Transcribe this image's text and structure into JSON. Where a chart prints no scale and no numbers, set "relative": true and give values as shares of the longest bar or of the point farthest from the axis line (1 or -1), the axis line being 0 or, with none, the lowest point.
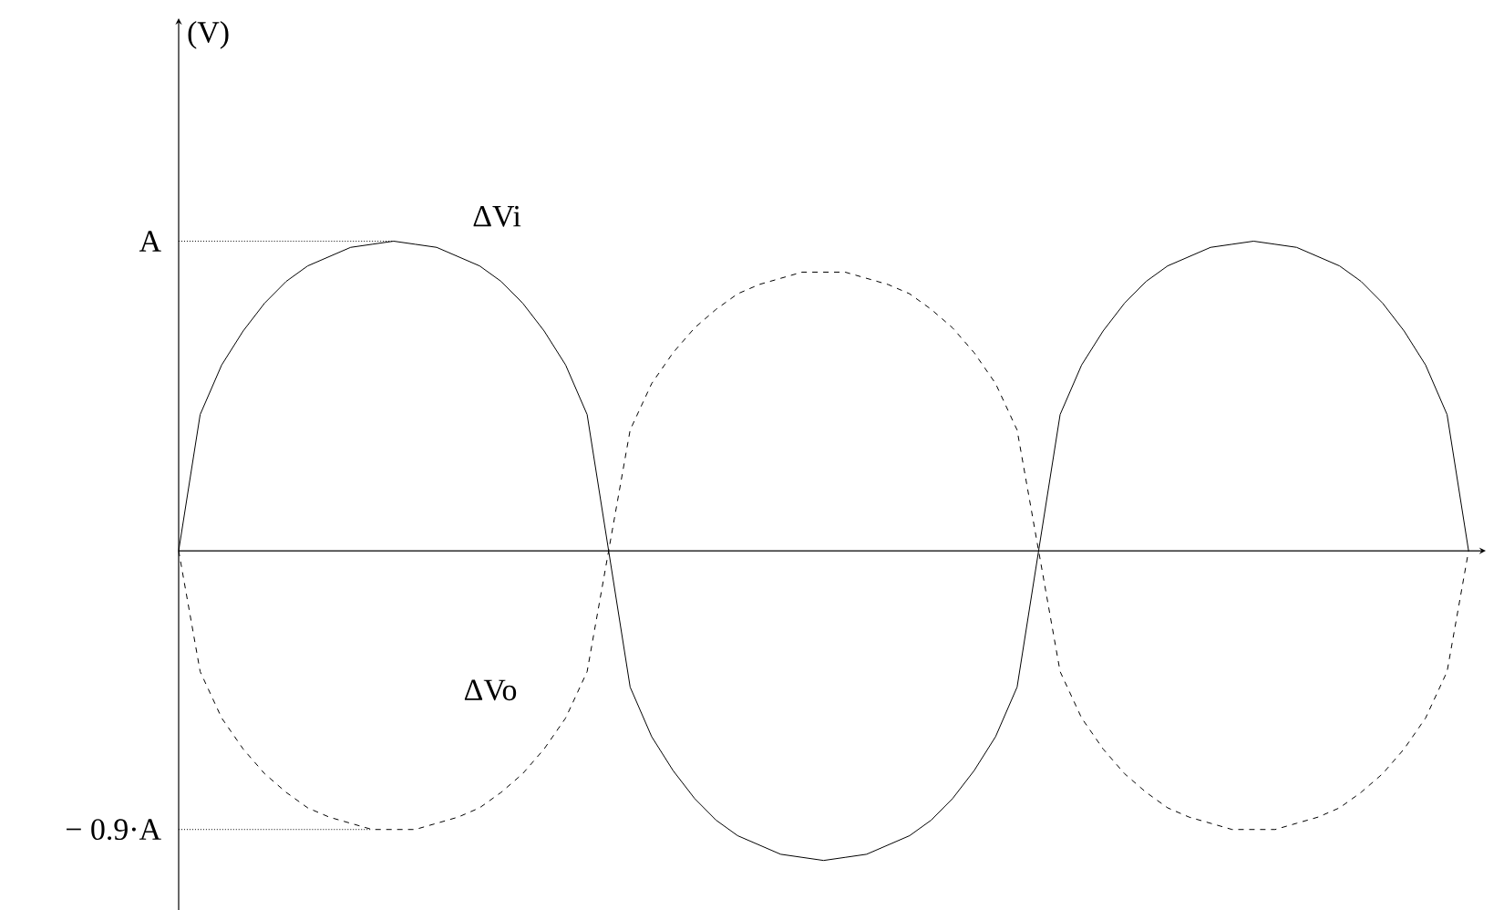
{
  "chart_data": {
    "type": "line",
    "categories": [
      null,
      null,
      null,
      null,
      null,
      null,
      null,
      null,
      null,
      null,
      null,
      null,
      null,
      null,
      null,
      null,
      null,
      null,
      null,
      null,
      null,
      null,
      null,
      null,
      null,
      null,
      null,
      null,
      null,
      null,
      null,
      null,
      null,
      null,
      null,
      null,
      null,
      null,
      null,
      null,
      null,
      null,
      null,
      null,
      null,
      null,
      null,
      null,
      null,
      null,
      null,
      null,
      null,
      null,
      null,
      null,
      null,
      null,
      null,
      null,
      null
    ],
    "series": [
      {
        "name": "ΔVi",
        "color": "#000000",
        "line_style": "solid",
        "values": [
          0,
          0.44,
          0.6,
          0.71,
          0.8,
          0.87,
          0.92,
          0.95,
          0.98,
          0.99,
          1,
          0.99,
          0.98,
          0.95,
          0.92,
          0.87,
          0.8,
          0.71,
          0.6,
          0.44,
          0,
          -0.44,
          -0.6,
          -0.71,
          -0.8,
          -0.87,
          -0.92,
          -0.95,
          -0.98,
          -0.99,
          -1,
          -0.99,
          -0.98,
          -0.95,
          -0.92,
          -0.87,
          -0.8,
          -0.71,
          -0.6,
          -0.44,
          0,
          0.44,
          0.6,
          0.71,
          0.8,
          0.87,
          0.92,
          0.95,
          0.98,
          0.99,
          1,
          0.99,
          0.98,
          0.95,
          0.92,
          0.87,
          0.8,
          0.71,
          0.6,
          0.44,
          0
        ]
      },
      {
        "name": "ΔVo",
        "color": "#000000",
        "line_style": "dashed",
        "values": [
          0,
          -0.39,
          -0.54,
          -0.64,
          -0.72,
          -0.78,
          -0.83,
          -0.86,
          -0.88,
          -0.9,
          -0.9,
          -0.9,
          -0.88,
          -0.86,
          -0.83,
          -0.78,
          -0.72,
          -0.64,
          -0.54,
          -0.39,
          0,
          0.39,
          0.54,
          0.64,
          0.72,
          0.78,
          0.83,
          0.86,
          0.88,
          0.9,
          0.9,
          0.9,
          0.88,
          0.86,
          0.83,
          0.78,
          0.72,
          0.64,
          0.54,
          0.39,
          0,
          -0.39,
          -0.54,
          -0.64,
          -0.72,
          -0.78,
          -0.83,
          -0.86,
          -0.88,
          -0.9,
          -0.9,
          -0.9,
          -0.88,
          -0.86,
          -0.83,
          -0.78,
          -0.72,
          -0.64,
          -0.54,
          -0.39,
          0
        ]
      }
    ],
    "relative": true,
    "annotations": [
      "A",
      "− 0.9·A",
      "(V)"
    ]
  }
}
